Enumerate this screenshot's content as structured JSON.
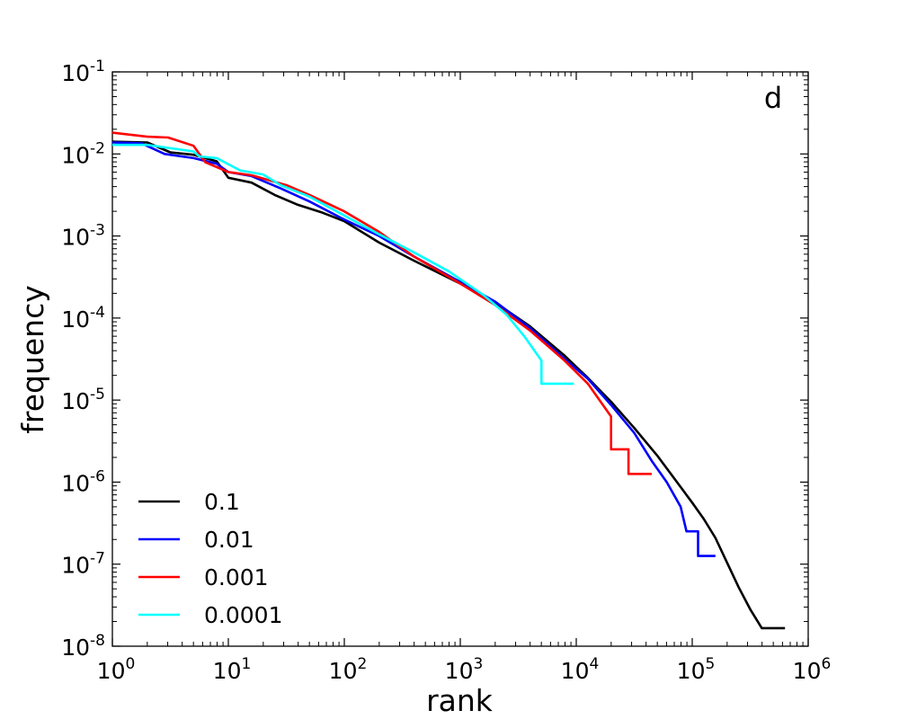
{
  "chart_data": {
    "type": "line",
    "title": "",
    "panel_label": "d",
    "xlabel": "rank",
    "ylabel": "frequency",
    "xscale": "log",
    "yscale": "log",
    "xlim_exp": [
      0,
      6
    ],
    "ylim_exp": [
      -8,
      -1
    ],
    "x_ticks": [
      {
        "base": "10",
        "exp": "0"
      },
      {
        "base": "10",
        "exp": "1"
      },
      {
        "base": "10",
        "exp": "2"
      },
      {
        "base": "10",
        "exp": "3"
      },
      {
        "base": "10",
        "exp": "4"
      },
      {
        "base": "10",
        "exp": "5"
      },
      {
        "base": "10",
        "exp": "6"
      }
    ],
    "y_ticks": [
      {
        "base": "10",
        "exp": "-8"
      },
      {
        "base": "10",
        "exp": "-7"
      },
      {
        "base": "10",
        "exp": "-6"
      },
      {
        "base": "10",
        "exp": "-5"
      },
      {
        "base": "10",
        "exp": "-4"
      },
      {
        "base": "10",
        "exp": "-3"
      },
      {
        "base": "10",
        "exp": "-2"
      },
      {
        "base": "10",
        "exp": "-1"
      }
    ],
    "legend_position": "lower-left",
    "series": [
      {
        "name": "0.1",
        "color": "#000000",
        "points": [
          [
            0,
            -1.85
          ],
          [
            0.3,
            -1.86
          ],
          [
            0.5,
            -1.98
          ],
          [
            0.7,
            -2.01
          ],
          [
            0.9,
            -2.09
          ],
          [
            1.0,
            -2.29
          ],
          [
            1.2,
            -2.35
          ],
          [
            1.4,
            -2.5
          ],
          [
            1.6,
            -2.62
          ],
          [
            1.8,
            -2.71
          ],
          [
            2.0,
            -2.82
          ],
          [
            2.3,
            -3.08
          ],
          [
            2.6,
            -3.3
          ],
          [
            3.0,
            -3.58
          ],
          [
            3.3,
            -3.81
          ],
          [
            3.6,
            -4.1
          ],
          [
            3.9,
            -4.46
          ],
          [
            4.1,
            -4.73
          ],
          [
            4.3,
            -5.02
          ],
          [
            4.5,
            -5.34
          ],
          [
            4.7,
            -5.68
          ],
          [
            4.9,
            -6.06
          ],
          [
            5.0,
            -6.25
          ],
          [
            5.1,
            -6.45
          ],
          [
            5.2,
            -6.68
          ],
          [
            5.3,
            -6.98
          ],
          [
            5.4,
            -7.28
          ],
          [
            5.5,
            -7.55
          ],
          [
            5.6,
            -7.78
          ],
          [
            5.8,
            -7.78
          ]
        ]
      },
      {
        "name": "0.01",
        "color": "#0000ff",
        "points": [
          [
            0,
            -1.86
          ],
          [
            0.25,
            -1.87
          ],
          [
            0.45,
            -2.0
          ],
          [
            0.7,
            -2.05
          ],
          [
            0.9,
            -2.12
          ],
          [
            1.0,
            -2.22
          ],
          [
            1.2,
            -2.27
          ],
          [
            1.45,
            -2.42
          ],
          [
            1.7,
            -2.58
          ],
          [
            2.0,
            -2.8
          ],
          [
            2.3,
            -3.0
          ],
          [
            2.6,
            -3.25
          ],
          [
            3.0,
            -3.56
          ],
          [
            3.3,
            -3.8
          ],
          [
            3.6,
            -4.12
          ],
          [
            3.9,
            -4.5
          ],
          [
            4.1,
            -4.74
          ],
          [
            4.3,
            -5.06
          ],
          [
            4.5,
            -5.4
          ],
          [
            4.65,
            -5.74
          ],
          [
            4.78,
            -6.0
          ],
          [
            4.9,
            -6.3
          ],
          [
            4.95,
            -6.6
          ],
          [
            5.05,
            -6.6
          ],
          [
            5.05,
            -6.9
          ],
          [
            5.2,
            -6.9
          ]
        ]
      },
      {
        "name": "0.001",
        "color": "#ff0000",
        "points": [
          [
            0,
            -1.74
          ],
          [
            0.3,
            -1.79
          ],
          [
            0.48,
            -1.8
          ],
          [
            0.7,
            -1.9
          ],
          [
            0.8,
            -2.1
          ],
          [
            1.0,
            -2.22
          ],
          [
            1.2,
            -2.26
          ],
          [
            1.5,
            -2.38
          ],
          [
            1.7,
            -2.5
          ],
          [
            2.0,
            -2.7
          ],
          [
            2.3,
            -2.95
          ],
          [
            2.6,
            -3.25
          ],
          [
            3.0,
            -3.58
          ],
          [
            3.3,
            -3.84
          ],
          [
            3.6,
            -4.15
          ],
          [
            3.9,
            -4.52
          ],
          [
            4.1,
            -4.8
          ],
          [
            4.3,
            -5.2
          ],
          [
            4.3,
            -5.6
          ],
          [
            4.45,
            -5.6
          ],
          [
            4.45,
            -5.9
          ],
          [
            4.65,
            -5.9
          ]
        ]
      },
      {
        "name": "0.0001",
        "color": "#00ffff",
        "points": [
          [
            0,
            -1.89
          ],
          [
            0.3,
            -1.89
          ],
          [
            0.5,
            -1.93
          ],
          [
            0.7,
            -1.97
          ],
          [
            0.75,
            -2.03
          ],
          [
            0.9,
            -2.05
          ],
          [
            1.1,
            -2.2
          ],
          [
            1.3,
            -2.25
          ],
          [
            1.45,
            -2.38
          ],
          [
            1.7,
            -2.52
          ],
          [
            2.0,
            -2.75
          ],
          [
            2.3,
            -2.98
          ],
          [
            2.6,
            -3.2
          ],
          [
            2.9,
            -3.43
          ],
          [
            3.2,
            -3.72
          ],
          [
            3.4,
            -3.96
          ],
          [
            3.55,
            -4.22
          ],
          [
            3.7,
            -4.52
          ],
          [
            3.7,
            -4.8
          ],
          [
            3.98,
            -4.8
          ]
        ]
      }
    ]
  }
}
